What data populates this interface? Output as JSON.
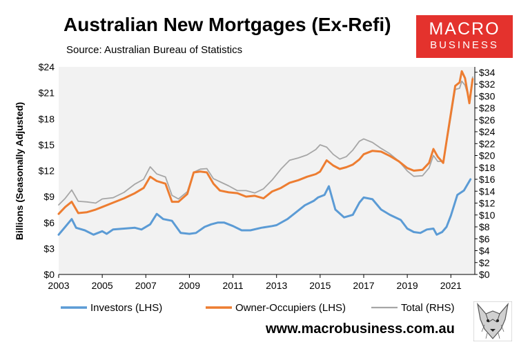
{
  "header": {
    "title": "Australian New Mortgages (Ex-Refi)",
    "subtitle": "Source: Australian Bureau of Statistics"
  },
  "logo": {
    "line1": "MACRO",
    "line2": "BUSINESS"
  },
  "footer": {
    "url": "www.macrobusiness.com.au"
  },
  "colors": {
    "investors": "#5b9bd5",
    "owner_occupiers": "#ed7d31",
    "total": "#a6a6a6",
    "plot_bg": "#f2f2f2",
    "logo": "#e4322d"
  },
  "chart_data": {
    "type": "line",
    "title": "Australian New Mortgages (Ex-Refi)",
    "ylabel": "Billions (Seasonally Adjusted)",
    "xlim": [
      2003,
      2022.1
    ],
    "ylim_left": [
      0,
      24
    ],
    "ylim_right": [
      0,
      34.9
    ],
    "x_ticks": [
      "2003",
      "2005",
      "2007",
      "2009",
      "2011",
      "2013",
      "2015",
      "2017",
      "2019",
      "2021"
    ],
    "y_ticks_left": [
      "$0",
      "$3",
      "$6",
      "$9",
      "$12",
      "$15",
      "$18",
      "$21",
      "$24"
    ],
    "y_ticks_right": [
      "$0",
      "$2",
      "$4",
      "$6",
      "$8",
      "$10",
      "$12",
      "$14",
      "$16",
      "$18",
      "$20",
      "$22",
      "$24",
      "$26",
      "$28",
      "$30",
      "$32",
      "$34"
    ],
    "grid": false,
    "legend_position": "bottom",
    "series": [
      {
        "name": "Investors (LHS)",
        "axis": "left",
        "x": [
          2003.0,
          2003.3,
          2003.6,
          2003.8,
          2004.2,
          2004.6,
          2005.0,
          2005.2,
          2005.5,
          2006.0,
          2006.5,
          2006.8,
          2007.2,
          2007.5,
          2007.8,
          2008.2,
          2008.6,
          2009.0,
          2009.3,
          2009.7,
          2010.0,
          2010.3,
          2010.6,
          2011.0,
          2011.4,
          2011.8,
          2012.3,
          2012.8,
          2013.0,
          2013.5,
          2013.8,
          2014.3,
          2014.7,
          2014.9,
          2015.2,
          2015.4,
          2015.7,
          2016.1,
          2016.5,
          2016.8,
          2017.0,
          2017.4,
          2017.8,
          2018.2,
          2018.7,
          2019.0,
          2019.3,
          2019.6,
          2019.9,
          2020.2,
          2020.35,
          2020.6,
          2020.8,
          2021.0,
          2021.3,
          2021.6,
          2021.9
        ],
        "y": [
          4.6,
          5.5,
          6.4,
          5.4,
          5.1,
          4.6,
          5.0,
          4.7,
          5.2,
          5.3,
          5.4,
          5.2,
          5.8,
          7.0,
          6.4,
          6.2,
          4.8,
          4.7,
          4.8,
          5.5,
          5.8,
          6.0,
          6.0,
          5.6,
          5.1,
          5.1,
          5.4,
          5.6,
          5.7,
          6.4,
          7.0,
          8.0,
          8.5,
          8.9,
          9.2,
          10.2,
          7.5,
          6.6,
          6.9,
          8.3,
          8.9,
          8.7,
          7.5,
          6.9,
          6.3,
          5.3,
          4.9,
          4.8,
          5.2,
          5.3,
          4.6,
          4.9,
          5.5,
          6.8,
          9.2,
          9.7,
          11.0
        ]
      },
      {
        "name": "Owner-Occupiers (LHS)",
        "axis": "left",
        "x": [
          2003.0,
          2003.3,
          2003.6,
          2003.9,
          2004.3,
          2004.7,
          2005.0,
          2005.5,
          2006.0,
          2006.5,
          2006.9,
          2007.2,
          2007.5,
          2007.9,
          2008.2,
          2008.5,
          2008.9,
          2009.2,
          2009.5,
          2009.8,
          2010.1,
          2010.4,
          2010.8,
          2011.2,
          2011.6,
          2012.0,
          2012.4,
          2012.8,
          2013.2,
          2013.6,
          2014.0,
          2014.4,
          2014.8,
          2015.0,
          2015.3,
          2015.6,
          2015.9,
          2016.2,
          2016.5,
          2016.8,
          2017.0,
          2017.4,
          2017.8,
          2018.2,
          2018.6,
          2019.0,
          2019.3,
          2019.7,
          2020.0,
          2020.2,
          2020.4,
          2020.65,
          2020.9,
          2021.2,
          2021.4,
          2021.5,
          2021.65,
          2021.85,
          2022.0
        ],
        "y": [
          7.0,
          7.8,
          8.4,
          7.1,
          7.2,
          7.5,
          7.8,
          8.3,
          8.8,
          9.4,
          10.0,
          11.3,
          10.8,
          10.5,
          8.4,
          8.4,
          9.3,
          11.8,
          11.9,
          11.8,
          10.5,
          9.7,
          9.5,
          9.4,
          9.0,
          9.1,
          8.8,
          9.6,
          10.0,
          10.6,
          10.9,
          11.3,
          11.6,
          11.9,
          13.2,
          12.6,
          12.2,
          12.4,
          12.7,
          13.3,
          13.9,
          14.3,
          14.2,
          13.7,
          13.1,
          12.3,
          12.0,
          12.1,
          12.9,
          14.5,
          13.6,
          12.9,
          17.0,
          21.8,
          22.2,
          23.5,
          22.7,
          19.8,
          22.6
        ]
      },
      {
        "name": "Total (RHS)",
        "axis": "right",
        "x": [
          2003.0,
          2003.3,
          2003.6,
          2003.9,
          2004.3,
          2004.7,
          2005.0,
          2005.5,
          2006.0,
          2006.5,
          2006.9,
          2007.2,
          2007.5,
          2007.9,
          2008.2,
          2008.5,
          2008.9,
          2009.2,
          2009.5,
          2009.8,
          2010.1,
          2010.4,
          2010.8,
          2011.2,
          2011.6,
          2012.0,
          2012.4,
          2012.8,
          2013.2,
          2013.6,
          2014.0,
          2014.4,
          2014.8,
          2015.0,
          2015.3,
          2015.6,
          2015.9,
          2016.2,
          2016.5,
          2016.8,
          2017.0,
          2017.4,
          2017.8,
          2018.2,
          2018.6,
          2019.0,
          2019.3,
          2019.7,
          2020.0,
          2020.2,
          2020.4,
          2020.65,
          2020.9,
          2021.2,
          2021.4,
          2021.5,
          2021.65,
          2021.85,
          2022.0
        ],
        "y": [
          11.7,
          12.8,
          14.2,
          12.3,
          12.2,
          12.0,
          12.7,
          12.9,
          13.8,
          15.2,
          16.0,
          18.1,
          16.9,
          16.4,
          13.3,
          12.7,
          13.9,
          17.2,
          17.7,
          17.8,
          16.1,
          15.6,
          14.9,
          14.1,
          14.1,
          13.7,
          14.4,
          15.9,
          17.7,
          19.2,
          19.6,
          20.1,
          21.0,
          21.8,
          21.4,
          20.2,
          19.4,
          19.8,
          20.9,
          22.4,
          22.8,
          22.2,
          21.2,
          20.3,
          19.1,
          17.4,
          16.5,
          16.6,
          17.9,
          20.0,
          19.0,
          19.0,
          24.2,
          31.1,
          31.3,
          32.5,
          31.8,
          29.4,
          33.2
        ]
      }
    ]
  }
}
